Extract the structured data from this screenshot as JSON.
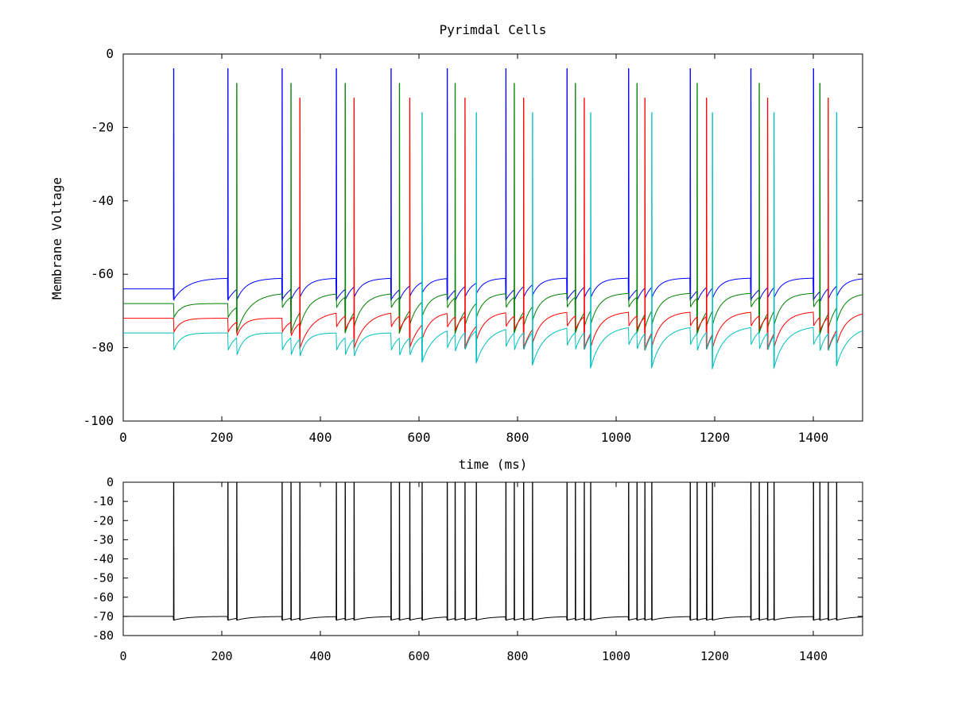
{
  "chart_data": [
    {
      "type": "line",
      "title": "Pyrimdal Cells",
      "xlabel": "time (ms)",
      "ylabel": "Membrane Voltage",
      "xlim": [
        0,
        1500
      ],
      "ylim": [
        -100,
        0
      ],
      "xticks": [
        "0",
        "200",
        "400",
        "600",
        "800",
        "1000",
        "1200",
        "1400"
      ],
      "yticks": [
        "0",
        "-20",
        "-40",
        "-60",
        "-80",
        "-100"
      ],
      "grid": false,
      "series": [
        {
          "color": "#0000ff",
          "rest": -61,
          "initial": -64,
          "spike_peak": -4,
          "after_spike": -67,
          "input_dip": -3,
          "spike_times": [
            102,
            212,
            322,
            432,
            543,
            657,
            776,
            900,
            1025,
            1150,
            1273,
            1400
          ]
        },
        {
          "color": "#008000",
          "rest": -65,
          "initial": -68,
          "spike_peak": -8,
          "after_spike": -75,
          "input_dip": -4,
          "spike_times": [
            230,
            340,
            450,
            560,
            673,
            793,
            917,
            1042,
            1164,
            1290,
            1413
          ]
        },
        {
          "color": "#ff0000",
          "rest": -70,
          "initial": -72,
          "spike_peak": -12,
          "after_spike": -79,
          "input_dip": -4,
          "spike_times": [
            358,
            468,
            581,
            693,
            812,
            935,
            1058,
            1183,
            1307,
            1430
          ]
        },
        {
          "color": "#00bfbf",
          "rest": -74,
          "initial": -76,
          "spike_peak": -16,
          "after_spike": -83,
          "input_dip": -5,
          "spike_times": [
            606,
            716,
            830,
            948,
            1072,
            1195,
            1320,
            1447
          ]
        }
      ]
    },
    {
      "type": "line",
      "title": "",
      "xlabel": "",
      "ylabel": "",
      "xlim": [
        0,
        1500
      ],
      "ylim": [
        -80,
        0
      ],
      "xticks": [
        "0",
        "200",
        "400",
        "600",
        "800",
        "1000",
        "1200",
        "1400"
      ],
      "yticks": [
        "0",
        "-10",
        "-20",
        "-30",
        "-40",
        "-50",
        "-60",
        "-70",
        "-80"
      ],
      "grid": false,
      "series": [
        {
          "color": "#000000",
          "rest": -70,
          "initial": -70,
          "spike_peak": 0,
          "after_spike": -72,
          "spike_times": [
            102,
            212,
            230,
            322,
            340,
            358,
            432,
            450,
            468,
            543,
            560,
            581,
            606,
            657,
            673,
            693,
            716,
            776,
            793,
            812,
            830,
            900,
            917,
            935,
            948,
            1025,
            1042,
            1058,
            1072,
            1150,
            1164,
            1183,
            1195,
            1273,
            1290,
            1307,
            1320,
            1400,
            1413,
            1430,
            1447
          ]
        }
      ]
    }
  ]
}
